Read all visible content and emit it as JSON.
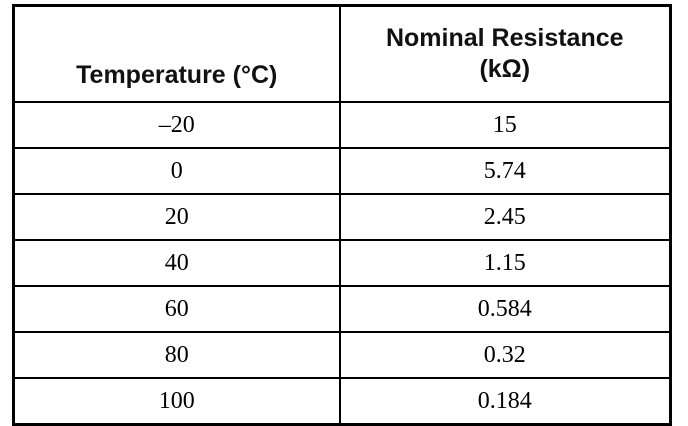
{
  "table": {
    "header": [
      "Temperature (°C)",
      "Nominal Resistance (kΩ)"
    ],
    "rows": [
      [
        "–20",
        "15"
      ],
      [
        "0",
        "5.74"
      ],
      [
        "20",
        "2.45"
      ],
      [
        "40",
        "1.15"
      ],
      [
        "60",
        "0.584"
      ],
      [
        "80",
        "0.32"
      ],
      [
        "100",
        "0.184"
      ]
    ]
  }
}
